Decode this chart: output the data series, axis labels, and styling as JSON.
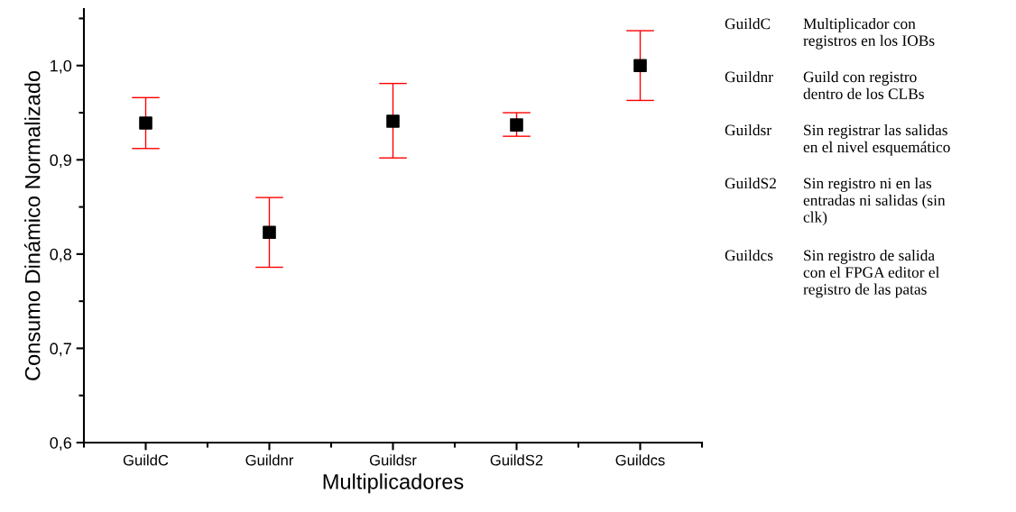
{
  "chart_data": {
    "type": "scatter",
    "xlabel": "Multiplicadores",
    "ylabel": "Consumo Dinámico Normalizado",
    "categories": [
      "GuildC",
      "Guildnr",
      "Guildsr",
      "GuildS2",
      "Guildcs"
    ],
    "values": [
      0.939,
      0.823,
      0.941,
      0.937,
      1.0
    ],
    "errors": [
      [
        0.912,
        0.966
      ],
      [
        0.786,
        0.86
      ],
      [
        0.902,
        0.981
      ],
      [
        0.925,
        0.95
      ],
      [
        0.963,
        1.037
      ]
    ],
    "color": "#000000",
    "marker": "square",
    "grid": false,
    "ylim": [
      0.6,
      1.06
    ],
    "yticks": [
      {
        "value": 0.6,
        "label": "0,6"
      },
      {
        "value": 0.7,
        "label": "0,7"
      },
      {
        "value": 0.8,
        "label": "0,8"
      },
      {
        "value": 0.9,
        "label": "0,9"
      },
      {
        "value": 1.0,
        "label": "1,0"
      }
    ],
    "annotations": [
      "GuildC",
      "Multiplicador con\nregistros en los IOBs",
      "Guildnr",
      "Guild con registro\ndentro de los CLBs",
      "Guildsr",
      "Sin registrar las salidas\nen el nivel esquemático",
      "GuildS2",
      "Sin registro ni en las\nentradas ni salidas (sin\nclk)",
      "Guildcs",
      "Sin registro de salida\ncon el FPGA editor el\nregistro de las patas"
    ]
  }
}
